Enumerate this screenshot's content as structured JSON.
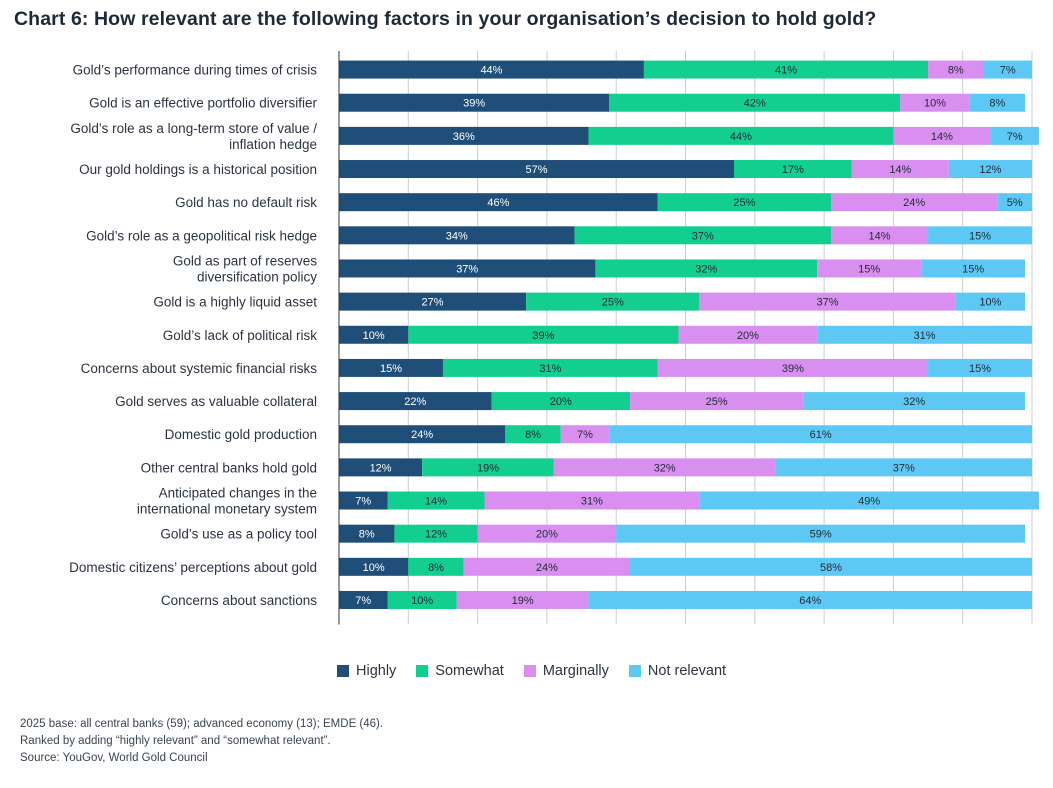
{
  "title": "Chart 6: How relevant are the following factors in your organisation’s decision to hold gold?",
  "colors": {
    "highly": "#1f4e79",
    "somewhat": "#12cf90",
    "marginally": "#d98ff0",
    "not_relevant": "#5ec8f5",
    "gridline": "#c9ced4",
    "axis": "#333333"
  },
  "legend": [
    {
      "key": "highly",
      "label": "Highly"
    },
    {
      "key": "somewhat",
      "label": "Somewhat"
    },
    {
      "key": "marginally",
      "label": "Marginally"
    },
    {
      "key": "not_relevant",
      "label": "Not relevant"
    }
  ],
  "notes": [
    "2025 base: all central banks (59); advanced economy (13); EMDE (46).",
    "Ranked by adding “highly relevant” and “somewhat relevant”.",
    "Source: YouGov, World Gold Council"
  ],
  "chart_data": {
    "type": "bar",
    "orientation": "horizontal",
    "stacked": true,
    "xlim": [
      0,
      100
    ],
    "grid": true,
    "legend_position": "bottom",
    "categories": [
      [
        "Gold’s performance during times of crisis"
      ],
      [
        "Gold is an effective portfolio diversifier"
      ],
      [
        "Gold’s role as a long-term store of value /",
        "inflation hedge"
      ],
      [
        "Our gold holdings is a historical position"
      ],
      [
        "Gold has no default risk"
      ],
      [
        "Gold’s role as a geopolitical risk hedge"
      ],
      [
        "Gold as part of reserves",
        "diversification policy"
      ],
      [
        "Gold is a highly liquid asset"
      ],
      [
        "Gold’s lack of political risk"
      ],
      [
        "Concerns about systemic financial risks"
      ],
      [
        "Gold serves as valuable collateral"
      ],
      [
        "Domestic gold production"
      ],
      [
        "Other central banks hold gold"
      ],
      [
        "Anticipated changes in the",
        "international monetary system"
      ],
      [
        "Gold’s use as a policy tool"
      ],
      [
        "Domestic citizens’ perceptions about gold"
      ],
      [
        "Concerns about sanctions"
      ]
    ],
    "series": [
      {
        "key": "highly",
        "name": "Highly",
        "values": [
          44,
          39,
          36,
          57,
          46,
          34,
          37,
          27,
          10,
          15,
          22,
          24,
          12,
          7,
          8,
          10,
          7
        ]
      },
      {
        "key": "somewhat",
        "name": "Somewhat",
        "values": [
          41,
          42,
          44,
          17,
          25,
          37,
          32,
          25,
          39,
          31,
          20,
          8,
          19,
          14,
          12,
          8,
          10
        ]
      },
      {
        "key": "marginally",
        "name": "Marginally",
        "values": [
          8,
          10,
          14,
          14,
          24,
          14,
          15,
          37,
          20,
          39,
          25,
          7,
          32,
          31,
          20,
          24,
          19
        ]
      },
      {
        "key": "not_relevant",
        "name": "Not relevant",
        "values": [
          7,
          8,
          7,
          12,
          5,
          15,
          15,
          10,
          31,
          15,
          32,
          61,
          37,
          49,
          59,
          58,
          64
        ]
      }
    ]
  }
}
